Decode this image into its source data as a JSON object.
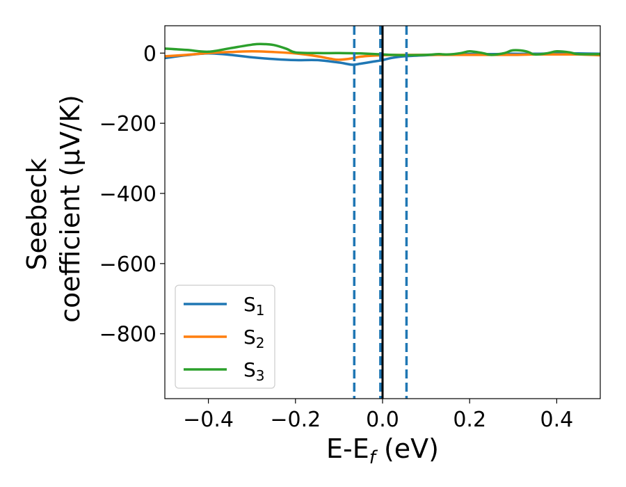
{
  "chart_data": {
    "type": "line",
    "xlabel": "E-E",
    "xlabel_sub": "f",
    "xlabel_unit": " (eV)",
    "ylabel_line1": "Seebeck",
    "ylabel_line2": "coefficient  (μV/K)",
    "xlim": [
      -0.5,
      0.5
    ],
    "ylim": [
      -985,
      78
    ],
    "xticks": [
      -0.4,
      -0.2,
      0.0,
      0.2,
      0.4
    ],
    "xtick_labels": [
      "−0.4",
      "−0.2",
      "0.0",
      "0.2",
      "0.4"
    ],
    "yticks": [
      0,
      -200,
      -400,
      -600,
      -800
    ],
    "ytick_labels": [
      "0",
      "−200",
      "−400",
      "−600",
      "−800"
    ],
    "grid": false,
    "legend_position": "lower-left",
    "series": [
      {
        "name": "S",
        "sub": "1",
        "color": "#1f77b4",
        "x": [
          -0.5,
          -0.45,
          -0.4,
          -0.35,
          -0.3,
          -0.25,
          -0.2,
          -0.15,
          -0.1,
          -0.07,
          -0.05,
          -0.02,
          0.0,
          0.02,
          0.05,
          0.1,
          0.15,
          0.2,
          0.25,
          0.3,
          0.35,
          0.4,
          0.45,
          0.5
        ],
        "y": [
          -14,
          -6,
          -1,
          -5,
          -12,
          -17,
          -20,
          -20,
          -27,
          -33,
          -30,
          -24,
          -20,
          -14,
          -9,
          -6,
          -4,
          -3,
          -3,
          -2,
          -2,
          -1,
          -1,
          -2
        ]
      },
      {
        "name": "S",
        "sub": "2",
        "color": "#ff7f0e",
        "x": [
          -0.5,
          -0.45,
          -0.4,
          -0.35,
          -0.3,
          -0.25,
          -0.2,
          -0.15,
          -0.12,
          -0.1,
          -0.07,
          -0.05,
          0.0,
          0.05,
          0.1,
          0.15,
          0.2,
          0.25,
          0.3,
          0.35,
          0.4,
          0.45,
          0.5
        ],
        "y": [
          -9,
          -5,
          0,
          3,
          5,
          3,
          -1,
          -9,
          -16,
          -19,
          -15,
          -10,
          -6,
          -5,
          -5,
          -5,
          -5,
          -5,
          -5,
          -4,
          -4,
          -4,
          -6
        ]
      },
      {
        "name": "S",
        "sub": "3",
        "color": "#2ca02c",
        "x": [
          -0.5,
          -0.45,
          -0.4,
          -0.35,
          -0.3,
          -0.28,
          -0.25,
          -0.22,
          -0.2,
          -0.15,
          -0.1,
          -0.05,
          0.0,
          0.05,
          0.1,
          0.13,
          0.15,
          0.18,
          0.2,
          0.23,
          0.25,
          0.28,
          0.3,
          0.33,
          0.35,
          0.38,
          0.4,
          0.43,
          0.45,
          0.5
        ],
        "y": [
          13,
          9,
          4,
          14,
          24,
          26,
          23,
          12,
          2,
          0,
          0,
          -1,
          -4,
          -6,
          -5,
          -3,
          -4,
          0,
          5,
          0,
          -5,
          0,
          8,
          5,
          -4,
          0,
          5,
          2,
          -3,
          -3
        ]
      }
    ],
    "vlines": [
      {
        "x": -0.065,
        "style": "dashed",
        "color": "#1f77b4"
      },
      {
        "x": -0.005,
        "style": "dashed",
        "color": "#1f77b4"
      },
      {
        "x": 0.0,
        "style": "solid",
        "color": "#000000"
      },
      {
        "x": 0.055,
        "style": "dashed",
        "color": "#1f77b4"
      }
    ]
  }
}
